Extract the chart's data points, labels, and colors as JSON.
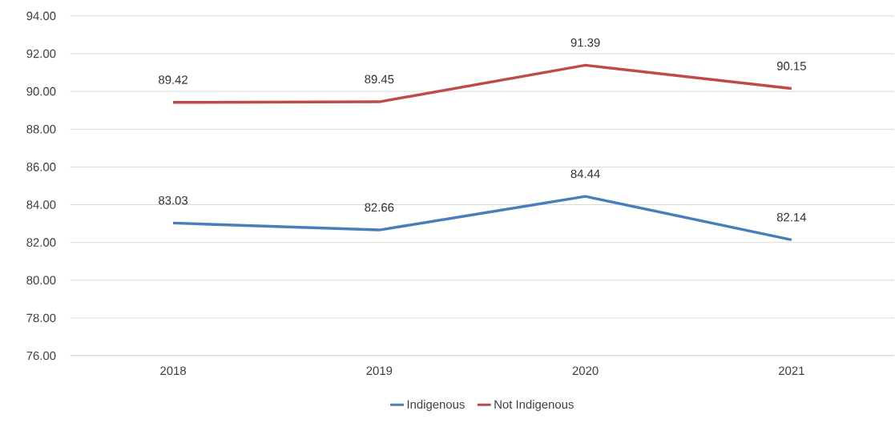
{
  "chart_data": {
    "type": "line",
    "categories": [
      "2018",
      "2019",
      "2020",
      "2021"
    ],
    "series": [
      {
        "name": "Indigenous",
        "color": "#4a7ebb",
        "values": [
          83.03,
          82.66,
          84.44,
          82.14
        ]
      },
      {
        "name": "Not Indigenous",
        "color": "#be4b48",
        "values": [
          89.42,
          89.45,
          91.39,
          90.15
        ]
      }
    ],
    "ylim": [
      76,
      94
    ],
    "yticks": [
      {
        "value": 76,
        "label": "76.00"
      },
      {
        "value": 78,
        "label": "78.00"
      },
      {
        "value": 80,
        "label": "80.00"
      },
      {
        "value": 82,
        "label": "82.00"
      },
      {
        "value": 84,
        "label": "84.00"
      },
      {
        "value": 86,
        "label": "86.00"
      },
      {
        "value": 88,
        "label": "88.00"
      },
      {
        "value": 90,
        "label": "90.00"
      },
      {
        "value": 92,
        "label": "92.00"
      },
      {
        "value": 94,
        "label": "94.00"
      }
    ],
    "grid": "y",
    "legend": "bottom",
    "data_labels": true,
    "marker": "none",
    "line_style": "solid"
  }
}
